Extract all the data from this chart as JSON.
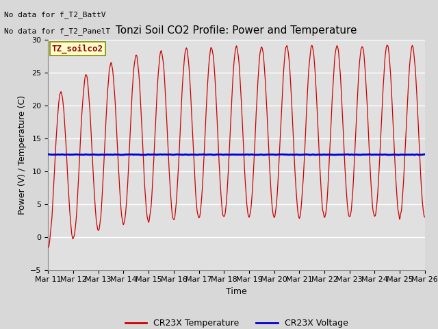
{
  "title": "Tonzi Soil CO2 Profile: Power and Temperature",
  "ylabel": "Power (V) / Temperature (C)",
  "xlabel": "Time",
  "ylim": [
    -5,
    30
  ],
  "yticks": [
    -5,
    0,
    5,
    10,
    15,
    20,
    25,
    30
  ],
  "fig_bg_color": "#d8d8d8",
  "plot_bg_color": "#e0e0e0",
  "no_data_text1": "No data for f_T2_BattV",
  "no_data_text2": "No data for f_T2_PanelT",
  "legend_label_text": "TZ_soilco2",
  "x_tick_labels": [
    "Mar 11",
    "Mar 12",
    "Mar 13",
    "Mar 14",
    "Mar 15",
    "Mar 16",
    "Mar 17",
    "Mar 18",
    "Mar 19",
    "Mar 20",
    "Mar 21",
    "Mar 22",
    "Mar 23",
    "Mar 24",
    "Mar 25",
    "Mar 26"
  ],
  "voltage_value": 12.5,
  "temp_color": "#cc0000",
  "voltage_color": "#0000cc",
  "legend_temp": "CR23X Temperature",
  "legend_voltage": "CR23X Voltage",
  "title_fontsize": 11,
  "label_fontsize": 9,
  "tick_fontsize": 8,
  "nodata_fontsize": 8,
  "legend_fontsize": 9
}
